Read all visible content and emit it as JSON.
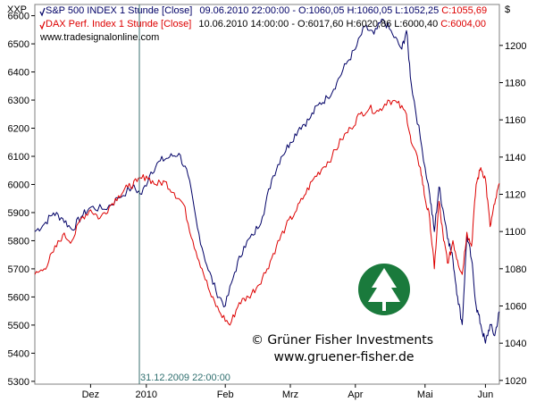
{
  "chart_data": {
    "type": "line",
    "title": "",
    "left_axis_label": "XXP",
    "right_axis_label": "$",
    "left_ylim": [
      5290,
      6640
    ],
    "right_ylim": [
      1018,
      1222
    ],
    "left_ticks": [
      5300,
      5400,
      5500,
      5600,
      5700,
      5800,
      5900,
      6000,
      6100,
      6200,
      6300,
      6400,
      6500,
      6600
    ],
    "right_ticks": [
      1020,
      1040,
      1060,
      1080,
      1100,
      1120,
      1140,
      1160,
      1180,
      1200
    ],
    "x_labels": [
      "Dez",
      "2010",
      "Feb",
      "Mrz",
      "Apr",
      "Mai",
      "Jun"
    ],
    "x_label_positions": [
      0.12,
      0.24,
      0.41,
      0.55,
      0.69,
      0.84,
      0.97
    ],
    "crosshair_x": 0.225,
    "crosshair_label": "31.12.2009 22:00:00",
    "source_label": "www.tradesignalonline.com",
    "series": [
      {
        "name": "S&P 500 INDEX 1 Stunde [Close]",
        "info": "09.06.2010 22:00:00 - O:1060,05 H:1060,05 L:1052,25",
        "last": "C:1055,69",
        "color": "#000066",
        "axis": "right",
        "points": [
          [
            0.0,
            1100
          ],
          [
            0.02,
            1104
          ],
          [
            0.04,
            1110
          ],
          [
            0.06,
            1107
          ],
          [
            0.08,
            1101
          ],
          [
            0.1,
            1108
          ],
          [
            0.12,
            1113
          ],
          [
            0.15,
            1112
          ],
          [
            0.18,
            1118
          ],
          [
            0.21,
            1124
          ],
          [
            0.23,
            1120
          ],
          [
            0.25,
            1132
          ],
          [
            0.27,
            1138
          ],
          [
            0.29,
            1140
          ],
          [
            0.31,
            1142
          ],
          [
            0.33,
            1130
          ],
          [
            0.35,
            1102
          ],
          [
            0.37,
            1082
          ],
          [
            0.39,
            1068
          ],
          [
            0.41,
            1060
          ],
          [
            0.43,
            1078
          ],
          [
            0.45,
            1092
          ],
          [
            0.47,
            1098
          ],
          [
            0.49,
            1108
          ],
          [
            0.51,
            1128
          ],
          [
            0.53,
            1140
          ],
          [
            0.55,
            1148
          ],
          [
            0.57,
            1156
          ],
          [
            0.59,
            1160
          ],
          [
            0.61,
            1168
          ],
          [
            0.63,
            1172
          ],
          [
            0.65,
            1180
          ],
          [
            0.67,
            1190
          ],
          [
            0.69,
            1198
          ],
          [
            0.71,
            1210
          ],
          [
            0.73,
            1206
          ],
          [
            0.75,
            1214
          ],
          [
            0.77,
            1206
          ],
          [
            0.79,
            1198
          ],
          [
            0.8,
            1208
          ],
          [
            0.81,
            1180
          ],
          [
            0.83,
            1150
          ],
          [
            0.85,
            1120
          ],
          [
            0.86,
            1100
          ],
          [
            0.87,
            1124
          ],
          [
            0.88,
            1110
          ],
          [
            0.89,
            1096
          ],
          [
            0.9,
            1085
          ],
          [
            0.91,
            1065
          ],
          [
            0.92,
            1050
          ],
          [
            0.93,
            1098
          ],
          [
            0.94,
            1085
          ],
          [
            0.95,
            1060
          ],
          [
            0.96,
            1050
          ],
          [
            0.97,
            1040
          ],
          [
            0.98,
            1050
          ],
          [
            0.99,
            1044
          ],
          [
            1.0,
            1057
          ]
        ]
      },
      {
        "name": "DAX Perf. Index 1 Stunde [Close]",
        "info": "10.06.2010 14:00:00 - O:6017,60 H:6020,86 L:6000,40",
        "last": "C:6004,00",
        "color": "#dd0000",
        "axis": "left",
        "points": [
          [
            0.0,
            5680
          ],
          [
            0.02,
            5700
          ],
          [
            0.04,
            5760
          ],
          [
            0.06,
            5820
          ],
          [
            0.08,
            5800
          ],
          [
            0.1,
            5880
          ],
          [
            0.12,
            5910
          ],
          [
            0.14,
            5880
          ],
          [
            0.16,
            5920
          ],
          [
            0.18,
            5960
          ],
          [
            0.2,
            5990
          ],
          [
            0.22,
            6010
          ],
          [
            0.24,
            6030
          ],
          [
            0.26,
            6000
          ],
          [
            0.28,
            6010
          ],
          [
            0.3,
            5970
          ],
          [
            0.32,
            5930
          ],
          [
            0.34,
            5800
          ],
          [
            0.36,
            5700
          ],
          [
            0.38,
            5600
          ],
          [
            0.4,
            5540
          ],
          [
            0.42,
            5500
          ],
          [
            0.44,
            5580
          ],
          [
            0.46,
            5600
          ],
          [
            0.48,
            5640
          ],
          [
            0.5,
            5700
          ],
          [
            0.52,
            5780
          ],
          [
            0.54,
            5850
          ],
          [
            0.56,
            5900
          ],
          [
            0.58,
            5960
          ],
          [
            0.6,
            6020
          ],
          [
            0.62,
            6060
          ],
          [
            0.64,
            6100
          ],
          [
            0.66,
            6160
          ],
          [
            0.68,
            6200
          ],
          [
            0.7,
            6250
          ],
          [
            0.72,
            6270
          ],
          [
            0.74,
            6260
          ],
          [
            0.76,
            6300
          ],
          [
            0.78,
            6290
          ],
          [
            0.8,
            6250
          ],
          [
            0.81,
            6150
          ],
          [
            0.83,
            6060
          ],
          [
            0.84,
            5950
          ],
          [
            0.85,
            5880
          ],
          [
            0.86,
            5700
          ],
          [
            0.87,
            5940
          ],
          [
            0.88,
            5800
          ],
          [
            0.89,
            5720
          ],
          [
            0.9,
            5800
          ],
          [
            0.91,
            5730
          ],
          [
            0.92,
            5680
          ],
          [
            0.93,
            5830
          ],
          [
            0.94,
            5780
          ],
          [
            0.95,
            6000
          ],
          [
            0.96,
            6060
          ],
          [
            0.97,
            6020
          ],
          [
            0.98,
            5850
          ],
          [
            0.99,
            5930
          ],
          [
            1.0,
            6004
          ]
        ]
      }
    ]
  },
  "watermark": {
    "copyright": "© Grüner Fisher Investments",
    "url": "www.gruener-fisher.de"
  }
}
